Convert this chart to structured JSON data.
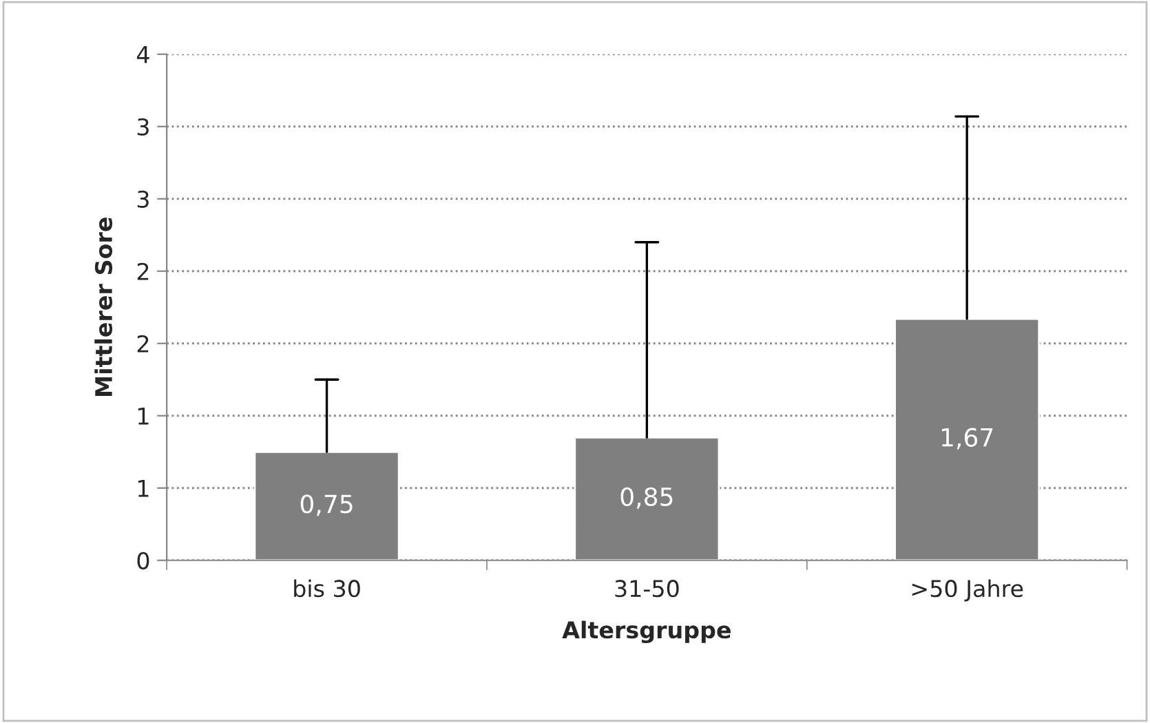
{
  "chart_data": {
    "type": "bar",
    "xlabel": "Altersgruppe",
    "ylabel": "Mittlerer Sore",
    "categories": [
      "bis 30",
      "31-50",
      ">50 Jahre"
    ],
    "values": [
      0.75,
      0.85,
      1.67
    ],
    "color": "#7f7f7f",
    "value_labels": [
      "0,75",
      "0,85",
      "1,67"
    ],
    "errors": [
      [
        0.75,
        1.25
      ],
      [
        0.85,
        2.2
      ],
      [
        1.67,
        3.07
      ]
    ],
    "ylim": [
      0,
      3.5
    ],
    "yticks": [
      0,
      {
        "value": 0.5,
        "label": "1"
      },
      1,
      {
        "value": 1.5,
        "label": "2"
      },
      2,
      {
        "value": 2.5,
        "label": "3"
      },
      3,
      {
        "value": 3.5,
        "label": "4"
      }
    ],
    "grid": "y",
    "legend": false
  }
}
